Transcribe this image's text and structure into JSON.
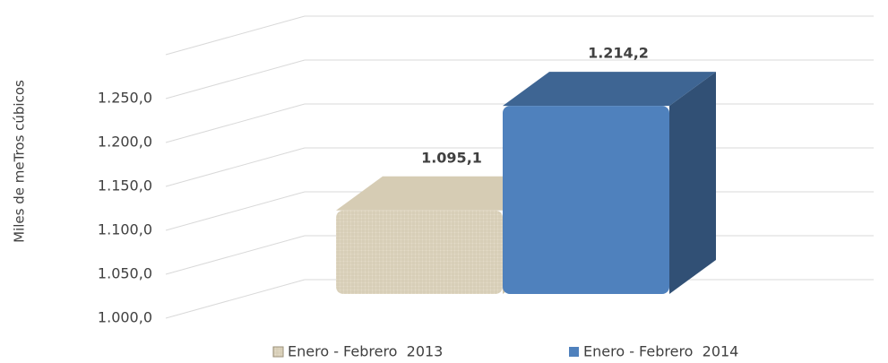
{
  "chart_data": {
    "type": "bar3d",
    "y_label": "Miles de meTros cúbicos",
    "categories": [
      null
    ],
    "series": [
      {
        "name": "Enero - Febrero  2013",
        "color": "#ddd3bd",
        "values": [
          1095.1
        ],
        "value_labels": [
          "1.095,1"
        ]
      },
      {
        "name": "Enero - Febrero  2014",
        "color": "#4f81bd",
        "values": [
          1214.2
        ],
        "value_labels": [
          "1.214,2"
        ]
      }
    ],
    "ylim": [
      1000,
      1300
    ],
    "yticks": [
      {
        "value": 1000,
        "label": "1.000,0"
      },
      {
        "value": 1050,
        "label": "1.050,0"
      },
      {
        "value": 1100,
        "label": "1.100,0"
      },
      {
        "value": 1150,
        "label": "1.150,0"
      },
      {
        "value": 1200,
        "label": "1.200,0"
      },
      {
        "value": 1250,
        "label": "1.250,0"
      }
    ],
    "grid": true,
    "legend": "bottom"
  }
}
